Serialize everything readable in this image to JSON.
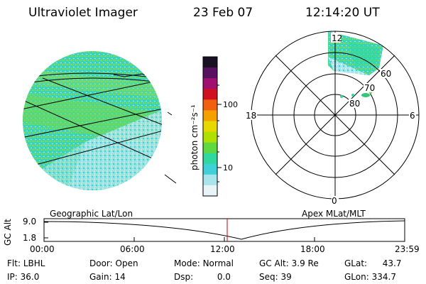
{
  "header": {
    "instrument": "Ultraviolet Imager",
    "date": "23 Feb 07",
    "time": "12:14:20 UT"
  },
  "colorbar": {
    "unit_label": "photon cm⁻²s⁻¹",
    "ticks": [
      "100",
      "10"
    ],
    "colors_top_to_bottom": [
      "#1a1024",
      "#5a1060",
      "#a01070",
      "#d01020",
      "#f06010",
      "#f5a000",
      "#e6d800",
      "#b0e000",
      "#60d840",
      "#30d8a0",
      "#40d0d8",
      "#a8e4ec",
      "#e8f4f6"
    ]
  },
  "left_panel": {
    "caption": "Geographic Lat/Lon"
  },
  "right_panel": {
    "caption": "Apex MLat/MLT",
    "mlt_labels": {
      "top": "12",
      "left": "18",
      "right": "6",
      "bottom": "0"
    },
    "lat_labels": [
      "60",
      "70",
      "80"
    ]
  },
  "timeline": {
    "y_axis_label": "GC Alt",
    "y_ticks": [
      "9.0",
      "1.8"
    ],
    "x_ticks": [
      "00:00",
      "06:00",
      "12:00",
      "18:00",
      "23:59"
    ],
    "current_time_color": "#cc0000"
  },
  "status": {
    "flt_label": "Flt:",
    "flt_value": "LBHL",
    "ip_label": "IP:",
    "ip_value": "36.0",
    "door_label": "Door:",
    "door_value": "Open",
    "gain_label": "Gain:",
    "gain_value": "14",
    "mode_label": "Mode:",
    "mode_value": "Normal",
    "dsp_label": "Dsp:",
    "dsp_value": "0.0",
    "gcalt_label": "GC Alt:",
    "gcalt_value": "3.9 Re",
    "seq_label": "Seq:",
    "seq_value": "39",
    "glat_label": "GLat:",
    "glat_value": "43.7",
    "glon_label": "GLon:",
    "glon_value": "334.7"
  }
}
